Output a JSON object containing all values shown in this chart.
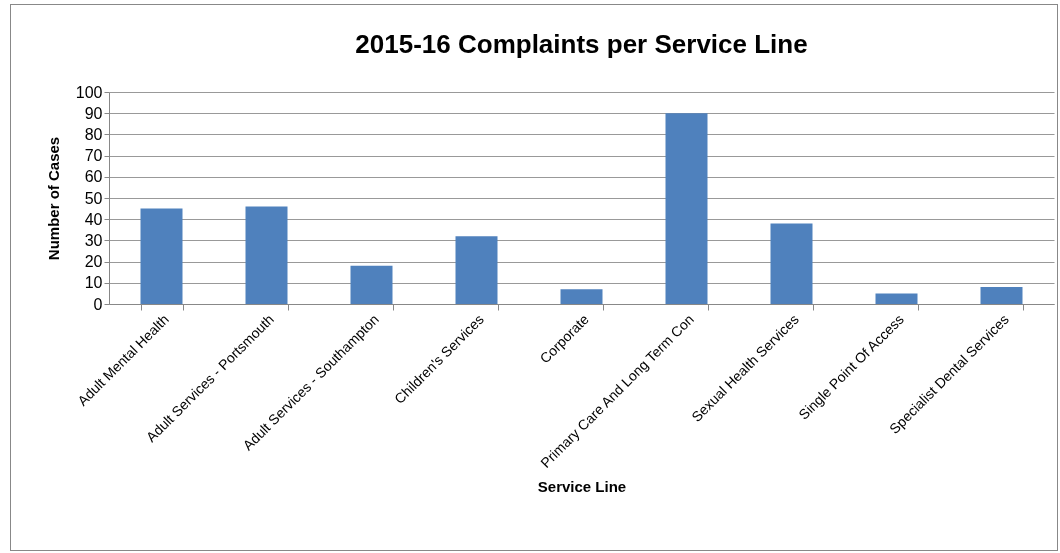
{
  "chart_data": {
    "type": "bar",
    "title": "2015-16 Complaints per Service Line",
    "xlabel": "Service Line",
    "ylabel": "Number of Cases",
    "categories": [
      "Adult Mental Health",
      "Adult Services - Portsmouth",
      "Adult Services - Southampton",
      "Children's Services",
      "Corporate",
      "Primary Care And Long Term Con",
      "Sexual Health Services",
      "Single Point Of Access",
      "Specialist Dental Services"
    ],
    "values": [
      45,
      46,
      18,
      32,
      7,
      90,
      38,
      5,
      8
    ],
    "color": "#4f81bd",
    "ylim": [
      0,
      100
    ],
    "yticks": [
      0,
      10,
      20,
      30,
      40,
      50,
      60,
      70,
      80,
      90,
      100
    ],
    "grid": "y"
  }
}
